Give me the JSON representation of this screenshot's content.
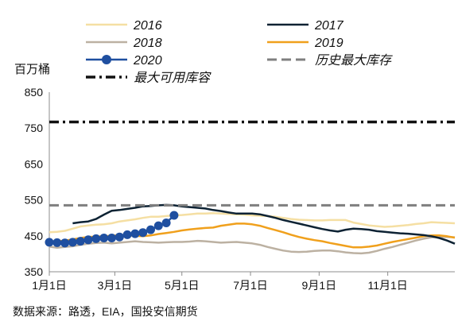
{
  "chart_data": {
    "type": "line",
    "ylabel": "百万桶",
    "ylim": [
      350,
      850
    ],
    "yticks": [
      350,
      450,
      550,
      650,
      750,
      850
    ],
    "x_domain_week": [
      1,
      53
    ],
    "xticks": [
      {
        "label": "1月1日",
        "week": 1
      },
      {
        "label": "3月1日",
        "week": 9.4
      },
      {
        "label": "5月1日",
        "week": 18
      },
      {
        "label": "7月1日",
        "week": 26.8
      },
      {
        "label": "9月1日",
        "week": 35.6
      },
      {
        "label": "11月1日",
        "week": 44.4
      }
    ],
    "grid": false,
    "legend_position": "top",
    "source": "数据来源：路透，EIA，国投安信期货",
    "series": [
      {
        "name": "2016",
        "color": "#f5dfa3",
        "style": "solid",
        "width": 2.5,
        "values": [
          460,
          461,
          464,
          470,
          476,
          479,
          481,
          482,
          485,
          490,
          493,
          496,
          500,
          503,
          503,
          505,
          507,
          508,
          510,
          512,
          512,
          513,
          512,
          511,
          510,
          509,
          507,
          506,
          505,
          503,
          500,
          497,
          495,
          494,
          493,
          493,
          494,
          494,
          494,
          487,
          483,
          479,
          477,
          475,
          476,
          478,
          480,
          483,
          485,
          488,
          487,
          486,
          485
        ]
      },
      {
        "name": "2017",
        "color": "#0d2233",
        "style": "solid",
        "width": 2.5,
        "values": [
          null,
          null,
          null,
          485,
          488,
          490,
          497,
          509,
          520,
          522,
          525,
          528,
          532,
          533,
          535,
          536,
          535,
          532,
          530,
          528,
          526,
          522,
          519,
          515,
          512,
          512,
          512,
          510,
          505,
          500,
          494,
          489,
          484,
          479,
          474,
          469,
          465,
          462,
          467,
          470,
          469,
          467,
          463,
          461,
          459,
          457,
          456,
          454,
          452,
          449,
          444,
          437,
          428
        ]
      },
      {
        "name": "2018",
        "color": "#bcb1a2",
        "style": "solid",
        "width": 2.5,
        "values": [
          420,
          417,
          419,
          421,
          425,
          428,
          430,
          431,
          429,
          431,
          433,
          435,
          433,
          432,
          431,
          432,
          433,
          433,
          434,
          436,
          435,
          433,
          431,
          432,
          433,
          431,
          429,
          425,
          419,
          414,
          409,
          406,
          405,
          406,
          408,
          409,
          409,
          407,
          404,
          402,
          401,
          403,
          408,
          414,
          419,
          425,
          431,
          437,
          442,
          446,
          447,
          447,
          446
        ]
      },
      {
        "name": "2019",
        "color": "#f0a01c",
        "style": "solid",
        "width": 2.5,
        "values": [
          433,
          435,
          437,
          440,
          444,
          447,
          448,
          449,
          450,
          452,
          451,
          450,
          449,
          451,
          455,
          458,
          461,
          465,
          468,
          470,
          472,
          473,
          478,
          481,
          484,
          484,
          482,
          478,
          472,
          466,
          460,
          453,
          447,
          442,
          438,
          435,
          430,
          426,
          422,
          418,
          418,
          420,
          423,
          428,
          433,
          437,
          441,
          445,
          449,
          451,
          451,
          449,
          445
        ]
      },
      {
        "name": "2020",
        "color": "#1f4fa0",
        "style": "markers",
        "width": 2.5,
        "values": [
          432,
          431,
          430,
          432,
          435,
          439,
          442,
          444,
          444,
          447,
          453,
          456,
          459,
          467,
          478,
          486,
          507
        ]
      },
      {
        "name": "历史最大库存",
        "color": "#7f7f7f",
        "style": "dashed",
        "width": 3,
        "values": [
          535,
          535,
          535,
          535,
          535,
          535,
          535,
          535,
          535,
          535,
          535,
          535,
          535,
          535,
          535,
          535,
          535,
          535,
          535,
          535,
          535,
          535,
          535,
          535,
          535,
          535,
          535,
          535,
          535,
          535,
          535,
          535,
          535,
          535,
          535,
          535,
          535,
          535,
          535,
          535,
          535,
          535,
          535,
          535,
          535,
          535,
          535,
          535,
          535,
          535,
          535,
          535,
          535
        ]
      },
      {
        "name": "最大可用库容",
        "color": "#111111",
        "style": "dashdot",
        "width": 3.5,
        "values": [
          767,
          767,
          767,
          767,
          767,
          767,
          767,
          767,
          767,
          767,
          767,
          767,
          767,
          767,
          767,
          767,
          767,
          767,
          767,
          767,
          767,
          767,
          767,
          767,
          767,
          767,
          767,
          767,
          767,
          767,
          767,
          767,
          767,
          767,
          767,
          767,
          767,
          767,
          767,
          767,
          767,
          767,
          767,
          767,
          767,
          767,
          767,
          767,
          767,
          767,
          767,
          767,
          767
        ]
      }
    ]
  }
}
